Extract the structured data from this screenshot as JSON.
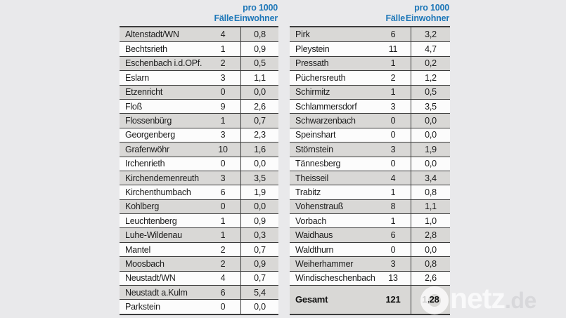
{
  "columns": {
    "cases": "Fälle",
    "per1000_line1": "pro 1000",
    "per1000_line2": "Einwohner"
  },
  "chart_data": {
    "type": "table",
    "value_columns": [
      "Fälle",
      "pro 1000 Einwohner"
    ],
    "left_rows": [
      {
        "name": "Altenstadt/WN",
        "cases": "4",
        "per_1000": "0,8"
      },
      {
        "name": "Bechtsrieth",
        "cases": "1",
        "per_1000": "0,9"
      },
      {
        "name": "Eschenbach i.d.OPf.",
        "cases": "2",
        "per_1000": "0,5"
      },
      {
        "name": "Eslarn",
        "cases": "3",
        "per_1000": "1,1"
      },
      {
        "name": "Etzenricht",
        "cases": "0",
        "per_1000": "0,0"
      },
      {
        "name": "Floß",
        "cases": "9",
        "per_1000": "2,6"
      },
      {
        "name": "Flossenbürg",
        "cases": "1",
        "per_1000": "0,7"
      },
      {
        "name": "Georgenberg",
        "cases": "3",
        "per_1000": "2,3"
      },
      {
        "name": "Grafenwöhr",
        "cases": "10",
        "per_1000": "1,6"
      },
      {
        "name": "Irchenrieth",
        "cases": "0",
        "per_1000": "0,0"
      },
      {
        "name": "Kirchendemenreuth",
        "cases": "3",
        "per_1000": "3,5"
      },
      {
        "name": "Kirchenthumbach",
        "cases": "6",
        "per_1000": "1,9"
      },
      {
        "name": "Kohlberg",
        "cases": "0",
        "per_1000": "0,0"
      },
      {
        "name": "Leuchtenberg",
        "cases": "1",
        "per_1000": "0,9"
      },
      {
        "name": "Luhe-Wildenau",
        "cases": "1",
        "per_1000": "0,3"
      },
      {
        "name": "Mantel",
        "cases": "2",
        "per_1000": "0,7"
      },
      {
        "name": "Moosbach",
        "cases": "2",
        "per_1000": "0,9"
      },
      {
        "name": "Neustadt/WN",
        "cases": "4",
        "per_1000": "0,7"
      },
      {
        "name": "Neustadt a.Kulm",
        "cases": "6",
        "per_1000": "5,4"
      },
      {
        "name": "Parkstein",
        "cases": "0",
        "per_1000": "0,0"
      }
    ],
    "right_rows": [
      {
        "name": "Pirk",
        "cases": "6",
        "per_1000": "3,2"
      },
      {
        "name": "Pleystein",
        "cases": "11",
        "per_1000": "4,7"
      },
      {
        "name": "Pressath",
        "cases": "1",
        "per_1000": "0,2"
      },
      {
        "name": "Püchersreuth",
        "cases": "2",
        "per_1000": "1,2"
      },
      {
        "name": "Schirmitz",
        "cases": "1",
        "per_1000": "0,5"
      },
      {
        "name": "Schlammersdorf",
        "cases": "3",
        "per_1000": "3,5"
      },
      {
        "name": "Schwarzenbach",
        "cases": "0",
        "per_1000": "0,0"
      },
      {
        "name": "Speinshart",
        "cases": "0",
        "per_1000": "0,0"
      },
      {
        "name": "Störnstein",
        "cases": "3",
        "per_1000": "1,9"
      },
      {
        "name": "Tännesberg",
        "cases": "0",
        "per_1000": "0,0"
      },
      {
        "name": "Theisseil",
        "cases": "4",
        "per_1000": "3,4"
      },
      {
        "name": "Trabitz",
        "cases": "1",
        "per_1000": "0,8"
      },
      {
        "name": "Vohenstrauß",
        "cases": "8",
        "per_1000": "1,1"
      },
      {
        "name": "Vorbach",
        "cases": "1",
        "per_1000": "1,0"
      },
      {
        "name": "Waidhaus",
        "cases": "6",
        "per_1000": "2,8"
      },
      {
        "name": "Waldthurn",
        "cases": "0",
        "per_1000": "0,0"
      },
      {
        "name": "Weiherhammer",
        "cases": "3",
        "per_1000": "0,8"
      },
      {
        "name": "Windischeschenbach",
        "cases": "13",
        "per_1000": "2,6"
      }
    ],
    "total": {
      "name": "Gesamt",
      "cases": "121",
      "per_1000": "1,28"
    }
  },
  "logo": {
    "text": "netz",
    "suffix": ".de"
  },
  "colors": {
    "accent_blue": "#1d77b8",
    "row_shaded": "#d9d8d6",
    "row_plain": "#fcfcfc",
    "background": "#e9e9eb",
    "border": "#3c3c3c"
  }
}
